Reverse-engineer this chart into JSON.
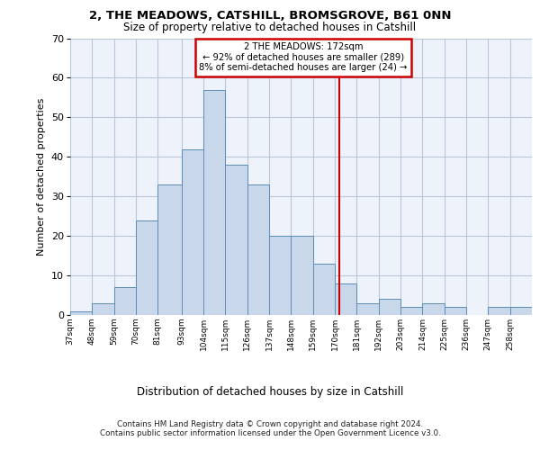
{
  "title1": "2, THE MEADOWS, CATSHILL, BROMSGROVE, B61 0NN",
  "title2": "Size of property relative to detached houses in Catshill",
  "xlabel": "Distribution of detached houses by size in Catshill",
  "ylabel": "Number of detached properties",
  "categories": [
    "37sqm",
    "48sqm",
    "59sqm",
    "70sqm",
    "81sqm",
    "93sqm",
    "104sqm",
    "115sqm",
    "126sqm",
    "137sqm",
    "148sqm",
    "159sqm",
    "170sqm",
    "181sqm",
    "192sqm",
    "203sqm",
    "214sqm",
    "225sqm",
    "236sqm",
    "247sqm",
    "258sqm"
  ],
  "bar_values": [
    1,
    3,
    7,
    24,
    33,
    42,
    57,
    38,
    33,
    20,
    20,
    13,
    8,
    3,
    4,
    2,
    3,
    2,
    0,
    2,
    2
  ],
  "bar_color": "#c8d8ea",
  "bar_edge_color": "#5b8db8",
  "bin_edges": [
    37,
    48,
    59,
    70,
    81,
    93,
    104,
    115,
    126,
    137,
    148,
    159,
    170,
    181,
    192,
    203,
    214,
    225,
    236,
    247,
    258,
    269
  ],
  "vline_x": 172,
  "vline_color": "#cc0000",
  "annotation_line1": "2 THE MEADOWS: 172sqm",
  "annotation_line2": "← 92% of detached houses are smaller (289)",
  "annotation_line3": "8% of semi-detached houses are larger (24) →",
  "annotation_box_facecolor": "#ffffff",
  "annotation_box_edgecolor": "#cc0000",
  "ylim": [
    0,
    70
  ],
  "yticks": [
    0,
    10,
    20,
    30,
    40,
    50,
    60,
    70
  ],
  "axes_bg_color": "#edf2fb",
  "grid_color": "#b8c8d8",
  "footer1": "Contains HM Land Registry data © Crown copyright and database right 2024.",
  "footer2": "Contains public sector information licensed under the Open Government Licence v3.0."
}
